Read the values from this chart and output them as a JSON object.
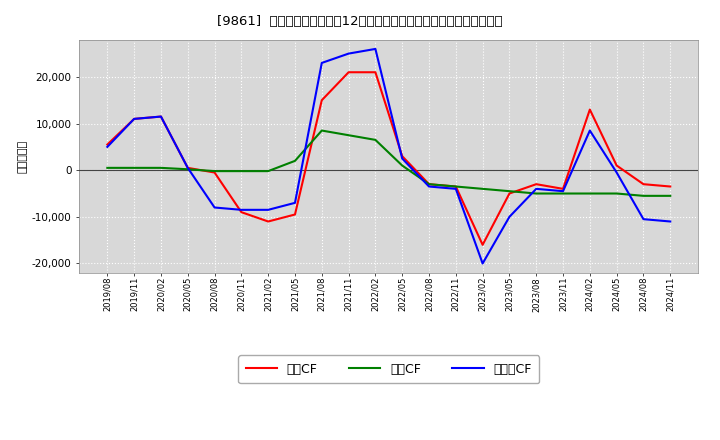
{
  "title": "[9861]  キャッシュフローの12か月移動合計の対前年同期増減額の推移",
  "ylabel": "（百万円）",
  "x_labels": [
    "2019/08",
    "2019/11",
    "2020/02",
    "2020/05",
    "2020/08",
    "2020/11",
    "2021/02",
    "2021/05",
    "2021/08",
    "2021/11",
    "2022/02",
    "2022/05",
    "2022/08",
    "2022/11",
    "2023/02",
    "2023/05",
    "2023/08",
    "2023/11",
    "2024/02",
    "2024/05",
    "2024/08",
    "2024/11"
  ],
  "operating_cf": [
    5500,
    11000,
    11500,
    500,
    -500,
    -9000,
    -11000,
    -9500,
    15000,
    21000,
    21000,
    3000,
    -3000,
    -3500,
    -16000,
    -5000,
    -3000,
    -4000,
    13000,
    1000,
    -3000,
    -3500
  ],
  "investing_cf": [
    500,
    500,
    500,
    200,
    -200,
    -200,
    -200,
    2000,
    8500,
    7500,
    6500,
    1000,
    -3000,
    -3500,
    -4000,
    -4500,
    -5000,
    -5000,
    -5000,
    -5000,
    -5500,
    -5500
  ],
  "free_cf": [
    5000,
    11000,
    11500,
    500,
    -8000,
    -8500,
    -8500,
    -7000,
    23000,
    25000,
    26000,
    2500,
    -3500,
    -4000,
    -20000,
    -10000,
    -4000,
    -4500,
    8500,
    -500,
    -10500,
    -11000
  ],
  "colors": {
    "operating": "#ff0000",
    "investing": "#008000",
    "free": "#0000ff"
  },
  "ylim": [
    -22000,
    28000
  ],
  "yticks": [
    -20000,
    -10000,
    0,
    10000,
    20000
  ],
  "bg_color": "#ffffff",
  "plot_bg_color": "#d8d8d8",
  "grid_color": "#ffffff",
  "legend_labels": [
    "営業CF",
    "投資CF",
    "フリーCF"
  ]
}
